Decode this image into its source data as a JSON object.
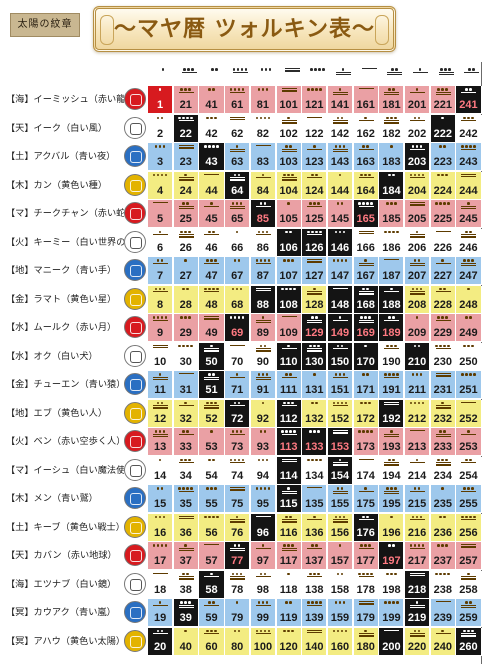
{
  "header": {
    "badge": "太陽の紋章",
    "title": "〜マヤ暦 ツォルキン表〜"
  },
  "colors": {
    "red": "#eaa0a4",
    "white": "#ffffff",
    "blue": "#9ec8ec",
    "yellow": "#f3ec82",
    "black": "#141414",
    "kin_start": "#d71a1f",
    "glyph_red": "#d71a1f",
    "glyph_blue": "#2a6fc2",
    "glyph_yellow": "#e3b300"
  },
  "column_tones": [
    1,
    8,
    2,
    9,
    3,
    10,
    4,
    11,
    5,
    12,
    6,
    13,
    7
  ],
  "seals": [
    {
      "label": "【海】イーミッシュ（赤い龍）",
      "glyph": "dragon-glyph",
      "color": "red"
    },
    {
      "label": "【天】イーク（白い風）",
      "glyph": "wind-glyph",
      "color": "white"
    },
    {
      "label": "【土】アクバル（青い夜）",
      "glyph": "night-glyph",
      "color": "blue"
    },
    {
      "label": "【木】カン（黄色い種）",
      "glyph": "seed-glyph",
      "color": "yellow"
    },
    {
      "label": "【マ】チークチャン（赤い蛇）",
      "glyph": "serpent-glyph",
      "color": "red"
    },
    {
      "label": "【火】キーミー（白い世界の橋渡し）",
      "glyph": "worldbridger-glyph",
      "color": "white"
    },
    {
      "label": "【地】マニーク（青い手）",
      "glyph": "hand-glyph",
      "color": "blue"
    },
    {
      "label": "【金】ラマト（黄色い星）",
      "glyph": "star-glyph",
      "color": "yellow"
    },
    {
      "label": "【水】ムールク（赤い月）",
      "glyph": "moon-glyph",
      "color": "red"
    },
    {
      "label": "【水】オク（白い犬）",
      "glyph": "dog-glyph",
      "color": "white"
    },
    {
      "label": "【金】チューエン（青い猿）",
      "glyph": "monkey-glyph",
      "color": "blue"
    },
    {
      "label": "【地】エブ（黄色い人）",
      "glyph": "human-glyph",
      "color": "yellow"
    },
    {
      "label": "【火】ベン（赤い空歩く人）",
      "glyph": "skywalker-glyph",
      "color": "red"
    },
    {
      "label": "【マ】イーシュ（白い魔法使い）",
      "glyph": "wizard-glyph",
      "color": "white"
    },
    {
      "label": "【木】メン（青い鷲）",
      "glyph": "eagle-glyph",
      "color": "blue"
    },
    {
      "label": "【土】キーブ（黄色い戦士）",
      "glyph": "warrior-glyph",
      "color": "yellow"
    },
    {
      "label": "【天】カバン（赤い地球）",
      "glyph": "earth-glyph",
      "color": "red"
    },
    {
      "label": "【海】エツナブ（白い鏡）",
      "glyph": "mirror-glyph",
      "color": "white"
    },
    {
      "label": "【冥】カウアク（青い嵐）",
      "glyph": "storm-glyph",
      "color": "blue"
    },
    {
      "label": "【冥】アハウ（黄色い太陽）",
      "glyph": "sun-glyph",
      "color": "yellow"
    }
  ],
  "rows": [
    [
      1,
      21,
      41,
      61,
      81,
      101,
      121,
      141,
      161,
      181,
      201,
      221,
      241
    ],
    [
      2,
      22,
      42,
      62,
      82,
      102,
      122,
      142,
      162,
      182,
      202,
      222,
      242
    ],
    [
      3,
      23,
      43,
      63,
      83,
      103,
      123,
      143,
      163,
      183,
      203,
      223,
      243
    ],
    [
      4,
      24,
      44,
      64,
      84,
      104,
      124,
      144,
      164,
      184,
      204,
      224,
      244
    ],
    [
      5,
      25,
      45,
      65,
      85,
      105,
      125,
      145,
      165,
      185,
      205,
      225,
      245
    ],
    [
      6,
      26,
      46,
      66,
      86,
      106,
      126,
      146,
      166,
      186,
      206,
      226,
      246
    ],
    [
      7,
      27,
      47,
      67,
      87,
      107,
      127,
      147,
      167,
      187,
      207,
      227,
      247
    ],
    [
      8,
      28,
      48,
      68,
      88,
      108,
      128,
      148,
      168,
      188,
      208,
      228,
      248
    ],
    [
      9,
      29,
      49,
      69,
      89,
      109,
      129,
      149,
      169,
      189,
      209,
      229,
      249
    ],
    [
      10,
      30,
      50,
      70,
      90,
      110,
      130,
      150,
      170,
      190,
      210,
      230,
      250
    ],
    [
      11,
      31,
      51,
      71,
      91,
      111,
      131,
      151,
      171,
      191,
      211,
      231,
      251
    ],
    [
      12,
      32,
      52,
      72,
      92,
      112,
      132,
      152,
      172,
      192,
      212,
      232,
      252
    ],
    [
      13,
      33,
      53,
      73,
      93,
      113,
      133,
      153,
      173,
      193,
      213,
      233,
      253
    ],
    [
      14,
      34,
      54,
      74,
      94,
      114,
      134,
      154,
      174,
      194,
      214,
      234,
      254
    ],
    [
      15,
      35,
      55,
      75,
      95,
      115,
      135,
      155,
      175,
      195,
      215,
      235,
      255
    ],
    [
      16,
      36,
      56,
      76,
      96,
      116,
      136,
      156,
      176,
      196,
      216,
      236,
      256
    ],
    [
      17,
      37,
      57,
      77,
      97,
      117,
      137,
      157,
      177,
      197,
      217,
      237,
      257
    ],
    [
      18,
      38,
      58,
      78,
      98,
      118,
      138,
      158,
      178,
      198,
      218,
      238,
      258
    ],
    [
      19,
      39,
      59,
      79,
      99,
      119,
      139,
      159,
      179,
      199,
      219,
      239,
      259
    ],
    [
      20,
      40,
      60,
      80,
      100,
      120,
      140,
      160,
      180,
      200,
      220,
      240,
      260
    ]
  ],
  "black_cells": [
    1,
    22,
    43,
    64,
    85,
    106,
    50,
    51,
    58,
    39,
    20,
    72,
    77,
    88,
    69,
    88,
    96,
    108,
    110,
    115,
    126,
    146,
    129,
    130,
    148,
    149,
    133,
    150,
    153,
    154,
    165,
    168,
    184,
    189,
    192,
    197,
    210,
    203,
    218,
    222,
    241,
    260,
    219,
    200,
    188,
    169,
    170,
    176,
    112,
    113,
    114
  ]
}
